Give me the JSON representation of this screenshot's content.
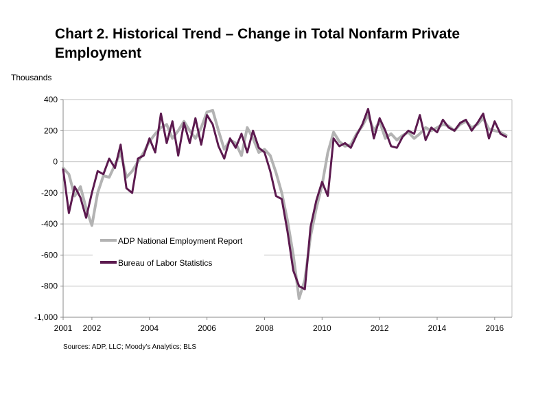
{
  "chart_data": {
    "type": "line",
    "title": "Chart 2. Historical Trend – Change in Total Nonfarm Private Employment",
    "ylabel": "Thousands",
    "xlabel": "",
    "source": "Sources: ADP, LLC; Moody's Analytics; BLS",
    "ylim": [
      -1000,
      400
    ],
    "xlim": [
      2001,
      2016.6
    ],
    "y_ticks": [
      400,
      200,
      0,
      -200,
      -400,
      -600,
      -800,
      -1000
    ],
    "y_tick_labels": [
      "400",
      "200",
      "0",
      "-200",
      "-400",
      "-600",
      "-800",
      "-1,000"
    ],
    "x_ticks": [
      2001,
      2002,
      2004,
      2006,
      2008,
      2010,
      2012,
      2014,
      2016
    ],
    "x_tick_labels": [
      "2001",
      "2002",
      "2004",
      "2006",
      "2008",
      "2010",
      "2012",
      "2014",
      "2016"
    ],
    "grid": true,
    "legend": {
      "position": "lower-left"
    },
    "series": [
      {
        "name": "ADP National Employment Report",
        "color": "#b3b3b3",
        "x": [
          2001.0,
          2001.2,
          2001.4,
          2001.6,
          2001.8,
          2002.0,
          2002.2,
          2002.4,
          2002.6,
          2002.8,
          2003.0,
          2003.2,
          2003.4,
          2003.6,
          2003.8,
          2004.0,
          2004.2,
          2004.4,
          2004.6,
          2004.8,
          2005.0,
          2005.2,
          2005.4,
          2005.6,
          2005.8,
          2006.0,
          2006.2,
          2006.4,
          2006.6,
          2006.8,
          2007.0,
          2007.2,
          2007.4,
          2007.6,
          2007.8,
          2008.0,
          2008.2,
          2008.4,
          2008.6,
          2008.8,
          2009.0,
          2009.2,
          2009.4,
          2009.6,
          2009.8,
          2010.0,
          2010.2,
          2010.4,
          2010.6,
          2010.8,
          2011.0,
          2011.2,
          2011.4,
          2011.6,
          2011.8,
          2012.0,
          2012.2,
          2012.4,
          2012.6,
          2012.8,
          2013.0,
          2013.2,
          2013.4,
          2013.6,
          2013.8,
          2014.0,
          2014.2,
          2014.4,
          2014.6,
          2014.8,
          2015.0,
          2015.2,
          2015.4,
          2015.6,
          2015.8,
          2016.0,
          2016.2,
          2016.4
        ],
        "values": [
          -40,
          -80,
          -220,
          -160,
          -300,
          -410,
          -200,
          -90,
          -100,
          -20,
          60,
          -100,
          -60,
          0,
          60,
          130,
          180,
          220,
          240,
          150,
          200,
          260,
          200,
          150,
          220,
          320,
          330,
          200,
          80,
          140,
          120,
          40,
          220,
          150,
          60,
          80,
          40,
          -70,
          -200,
          -380,
          -600,
          -880,
          -760,
          -480,
          -300,
          -150,
          60,
          190,
          130,
          100,
          110,
          180,
          230,
          300,
          200,
          260,
          150,
          180,
          140,
          170,
          190,
          150,
          180,
          220,
          200,
          220,
          240,
          230,
          200,
          240,
          260,
          220,
          240,
          280,
          210,
          200,
          190,
          170
        ]
      },
      {
        "name": "Bureau of Labor Statistics",
        "color": "#5c1a4f",
        "x": [
          2001.0,
          2001.2,
          2001.4,
          2001.6,
          2001.8,
          2002.0,
          2002.2,
          2002.4,
          2002.6,
          2002.8,
          2003.0,
          2003.2,
          2003.4,
          2003.6,
          2003.8,
          2004.0,
          2004.2,
          2004.4,
          2004.6,
          2004.8,
          2005.0,
          2005.2,
          2005.4,
          2005.6,
          2005.8,
          2006.0,
          2006.2,
          2006.4,
          2006.6,
          2006.8,
          2007.0,
          2007.2,
          2007.4,
          2007.6,
          2007.8,
          2008.0,
          2008.2,
          2008.4,
          2008.6,
          2008.8,
          2009.0,
          2009.2,
          2009.4,
          2009.6,
          2009.8,
          2010.0,
          2010.2,
          2010.4,
          2010.6,
          2010.8,
          2011.0,
          2011.2,
          2011.4,
          2011.6,
          2011.8,
          2012.0,
          2012.2,
          2012.4,
          2012.6,
          2012.8,
          2013.0,
          2013.2,
          2013.4,
          2013.6,
          2013.8,
          2014.0,
          2014.2,
          2014.4,
          2014.6,
          2014.8,
          2015.0,
          2015.2,
          2015.4,
          2015.6,
          2015.8,
          2016.0,
          2016.2,
          2016.4
        ],
        "values": [
          -50,
          -330,
          -160,
          -230,
          -360,
          -200,
          -60,
          -80,
          20,
          -40,
          110,
          -170,
          -200,
          20,
          40,
          150,
          60,
          310,
          120,
          260,
          40,
          250,
          120,
          280,
          110,
          300,
          240,
          100,
          20,
          150,
          90,
          180,
          60,
          200,
          90,
          60,
          -60,
          -220,
          -240,
          -450,
          -700,
          -800,
          -820,
          -420,
          -250,
          -130,
          -220,
          150,
          100,
          120,
          90,
          170,
          240,
          340,
          150,
          280,
          200,
          100,
          90,
          160,
          200,
          180,
          300,
          140,
          220,
          190,
          270,
          220,
          200,
          250,
          270,
          200,
          250,
          310,
          150,
          260,
          180,
          160
        ]
      }
    ]
  }
}
